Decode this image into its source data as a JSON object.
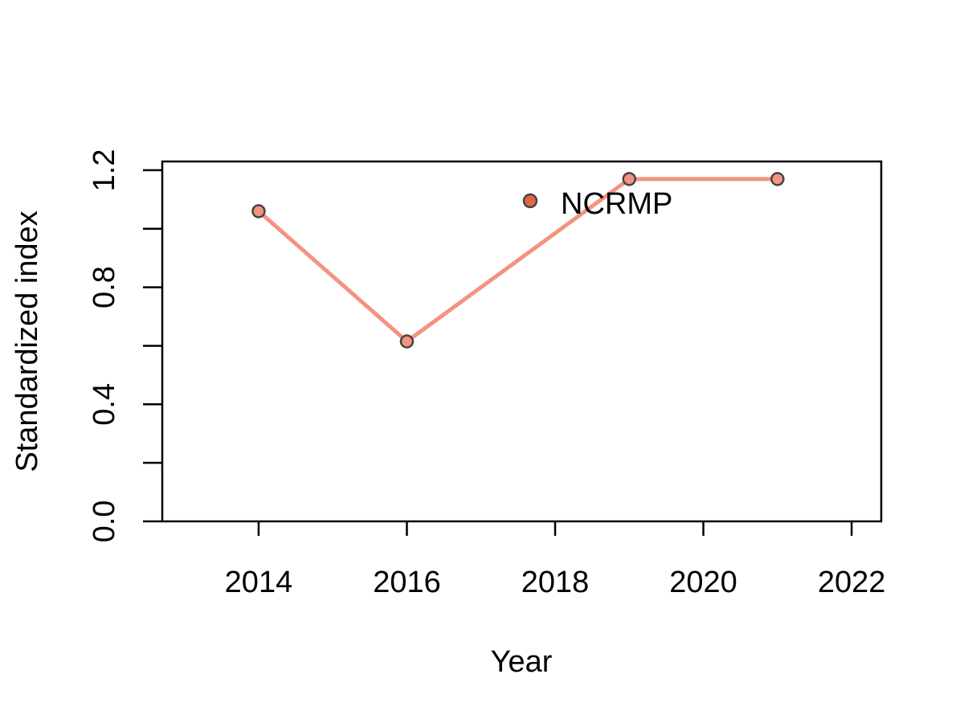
{
  "chart_data": {
    "type": "line",
    "title": "",
    "xlabel": "Year",
    "ylabel": "Standardized index",
    "xlim": [
      2012.7,
      2022.4
    ],
    "ylim": [
      0.0,
      1.23
    ],
    "xticks": [
      2014,
      2016,
      2018,
      2020,
      2022
    ],
    "xtick_labels": [
      "2014",
      "2016",
      "2018",
      "2020",
      "2022"
    ],
    "yticks": [
      0.0,
      0.2,
      0.4,
      0.6,
      0.8,
      1.0,
      1.2
    ],
    "ytick_labels": [
      "0.0",
      "",
      "0.4",
      "",
      "0.8",
      "",
      "1.2"
    ],
    "grid": false,
    "legend_position": "top-center",
    "series": [
      {
        "name": "NCRMP",
        "x": [
          2014,
          2016,
          2019,
          2021
        ],
        "y": [
          1.06,
          0.615,
          1.17,
          1.17
        ],
        "line_color": "#f4937f",
        "marker_fill": "#f4937f",
        "marker_edge": "#444444"
      }
    ],
    "legend": [
      {
        "label": "NCRMP",
        "marker_fill": "#e8643f",
        "marker_edge": "#444444"
      }
    ]
  }
}
